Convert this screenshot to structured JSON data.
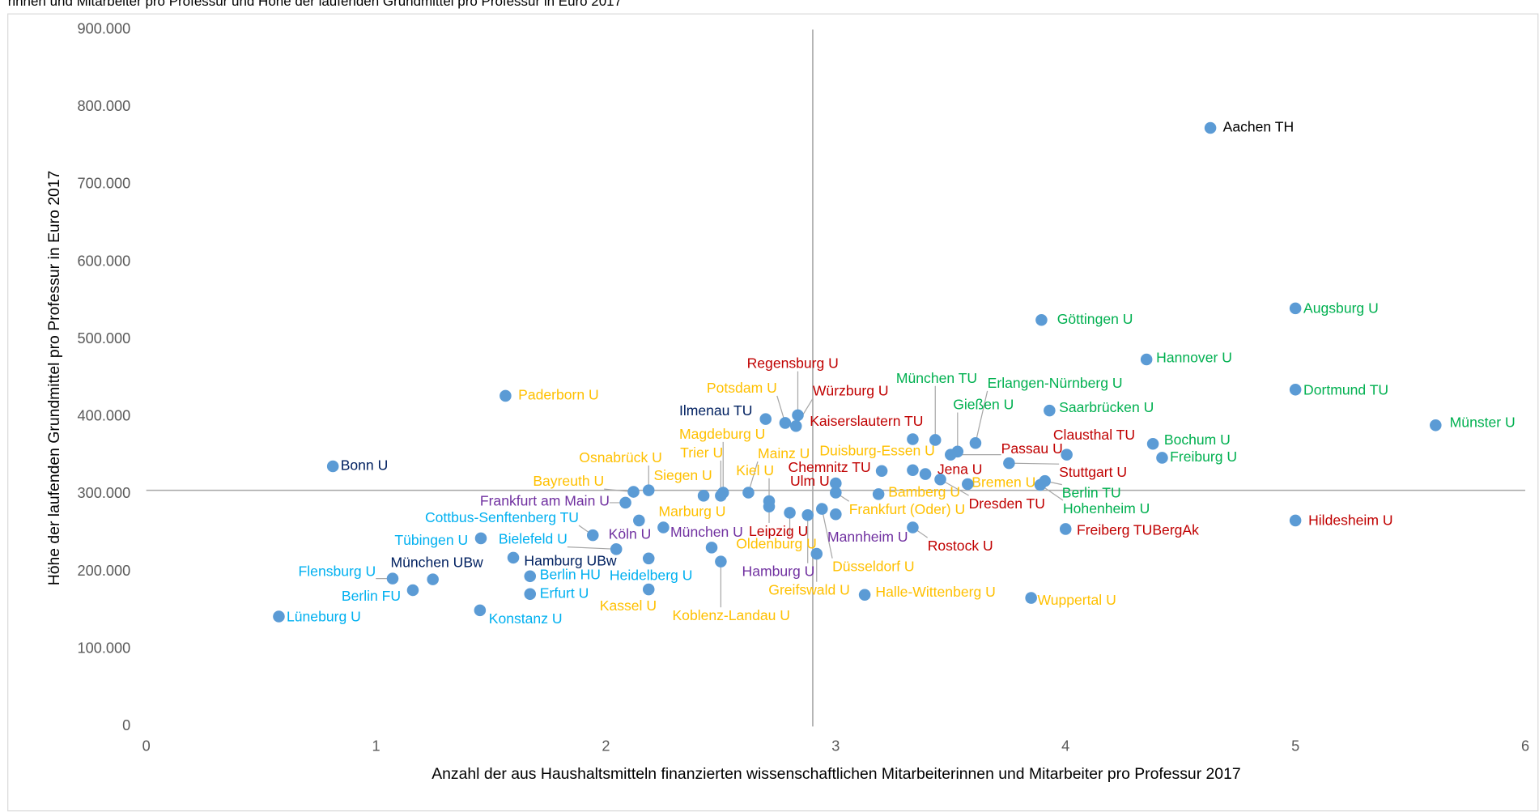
{
  "chart_data": {
    "type": "scatter",
    "title": "rinnen und Mitarbeiter pro Professur und Höhe der laufenden Grundmittel pro Professur in Euro 2017",
    "xlabel": "Anzahl der aus Haushaltsmitteln finanzierten wissenschaftlichen Mitarbeiterinnen und Mitarbeiter pro Professur 2017",
    "ylabel": "Höhe der laufenden Grundmittel pro Professur in Euro 2017",
    "xlim": [
      0,
      6
    ],
    "xticks": [
      0,
      1,
      2,
      3,
      4,
      5,
      6
    ],
    "ylim": [
      0,
      900000
    ],
    "yticks": [
      0,
      {
        "value": 100000,
        "label": "100.000"
      },
      {
        "value": 200000,
        "label": "200.000"
      },
      {
        "value": 300000,
        "label": "300.000"
      },
      {
        "value": 400000,
        "label": "400.000"
      },
      {
        "value": 500000,
        "label": "500.000"
      },
      {
        "value": 600000,
        "label": "600.000"
      },
      {
        "value": 700000,
        "label": "700.000"
      },
      {
        "value": 800000,
        "label": "800.000"
      },
      {
        "value": 900000,
        "label": "900.000"
      }
    ],
    "grid": false,
    "marker_color": "#5b9bd5",
    "reference_lines": {
      "x": 2.9,
      "y": 305000,
      "color": "#a6a6a6"
    },
    "points": [
      {
        "label": "Aachen TH",
        "x": 4.63,
        "y": 773000,
        "color": "#000000"
      },
      {
        "label": "Augsburg U",
        "x": 5.0,
        "y": 540000,
        "color": "#00b050"
      },
      {
        "label": "Göttingen U",
        "x": 3.895,
        "y": 525000,
        "color": "#00b050"
      },
      {
        "label": "Hannover U",
        "x": 4.352,
        "y": 474000,
        "color": "#00b050"
      },
      {
        "label": "Dortmund TU",
        "x": 5.0,
        "y": 435000,
        "color": "#00b050"
      },
      {
        "label": "Münster U",
        "x": 5.61,
        "y": 389000,
        "color": "#00b050"
      },
      {
        "label": "Hildesheim U",
        "x": 5.0,
        "y": 266000,
        "color": "#c00000"
      },
      {
        "label": "Bochum U",
        "x": 4.38,
        "y": 365000,
        "color": "#00b050"
      },
      {
        "label": "Freiburg U",
        "x": 4.42,
        "y": 347000,
        "color": "#00b050"
      },
      {
        "label": "Saarbrücken U",
        "x": 3.93,
        "y": 408000,
        "color": "#00b050"
      },
      {
        "label": "Clausthal TU",
        "x": 4.005,
        "y": 351000,
        "color": "#c00000"
      },
      {
        "label": "Stuttgart U",
        "x": 3.754,
        "y": 340000,
        "color": "#c00000"
      },
      {
        "label": "Freiberg TUBergAk",
        "x": 4.0,
        "y": 255000,
        "color": "#c00000"
      },
      {
        "label": "Wuppertal U",
        "x": 3.85,
        "y": 166000,
        "color": "#ffc000"
      },
      {
        "label": "Berlin TU",
        "x": 3.91,
        "y": 317000,
        "color": "#00b050"
      },
      {
        "label": "Hohenheim U",
        "x": 3.89,
        "y": 312000,
        "color": "#00b050"
      },
      {
        "label": "Bremen U",
        "x": 3.574,
        "y": 313000,
        "color": "#ffc000"
      },
      {
        "label": "München TU",
        "x": 3.433,
        "y": 370000,
        "color": "#00b050"
      },
      {
        "label": "Erlangen-Nürnberg U",
        "x": 3.608,
        "y": 366000,
        "color": "#00b050"
      },
      {
        "label": "Gießen U",
        "x": 3.53,
        "y": 355000,
        "color": "#00b050"
      },
      {
        "label": "Passau U",
        "x": 3.5,
        "y": 351000,
        "color": "#c00000"
      },
      {
        "label": "Jena U",
        "x": 3.39,
        "y": 326000,
        "color": "#c00000"
      },
      {
        "label": "Kaiserslautern TU",
        "x": 3.335,
        "y": 371000,
        "color": "#c00000"
      },
      {
        "label": "Duisburg-Essen U",
        "x": 3.335,
        "y": 331000,
        "color": "#ffc000"
      },
      {
        "label": "Dresden TU",
        "x": 3.455,
        "y": 319000,
        "color": "#c00000"
      },
      {
        "label": "Chemnitz TU",
        "x": 3.2,
        "y": 330000,
        "color": "#c00000"
      },
      {
        "label": "Ulm U",
        "x": 3.0,
        "y": 314000,
        "color": "#c00000"
      },
      {
        "label": "Bamberg U",
        "x": 3.186,
        "y": 300000,
        "color": "#ffc000"
      },
      {
        "label": "Frankfurt (Oder) U",
        "x": 3.0,
        "y": 302000,
        "color": "#ffc000"
      },
      {
        "label": "Rostock U",
        "x": 3.335,
        "y": 257000,
        "color": "#c00000"
      },
      {
        "label": "Mannheim U",
        "x": 3.0,
        "y": 274000,
        "color": "#7030a0"
      },
      {
        "label": "Düsseldorf U",
        "x": 2.94,
        "y": 281000,
        "color": "#ffc000"
      },
      {
        "label": "Halle-Wittenberg U",
        "x": 3.126,
        "y": 170000,
        "color": "#ffc000"
      },
      {
        "label": "Greifswald U",
        "x": 2.917,
        "y": 223000,
        "color": "#ffc000"
      },
      {
        "label": "Hamburg U",
        "x": 2.878,
        "y": 273000,
        "color": "#7030a0"
      },
      {
        "label": "Oldenburg U",
        "x": 2.8,
        "y": 276000,
        "color": "#ffc000"
      },
      {
        "label": "Leipzig U",
        "x": 2.71,
        "y": 284000,
        "color": "#c00000"
      },
      {
        "label": "Kiel U",
        "x": 2.71,
        "y": 291000,
        "color": "#ffc000"
      },
      {
        "label": "Mainz U",
        "x": 2.62,
        "y": 302000,
        "color": "#ffc000"
      },
      {
        "label": "München U",
        "x": 2.46,
        "y": 231000,
        "color": "#7030a0"
      },
      {
        "label": "Koblenz-Landau U",
        "x": 2.5,
        "y": 213000,
        "color": "#ffc000"
      },
      {
        "label": "Kassel U",
        "x": 2.186,
        "y": 177000,
        "color": "#ffc000"
      },
      {
        "label": "Heidelberg U",
        "x": 2.186,
        "y": 217000,
        "color": "#00b0f0"
      },
      {
        "label": "Marburg U",
        "x": 2.25,
        "y": 257000,
        "color": "#ffc000"
      },
      {
        "label": "Köln U",
        "x": 2.144,
        "y": 266000,
        "color": "#7030a0"
      },
      {
        "label": "Trier U",
        "x": 2.5,
        "y": 298000,
        "color": "#ffc000"
      },
      {
        "label": "Magdeburg U",
        "x": 2.51,
        "y": 302000,
        "color": "#ffc000"
      },
      {
        "label": "Siegen U",
        "x": 2.425,
        "y": 298000,
        "color": "#ffc000"
      },
      {
        "label": "Osnabrück U",
        "x": 2.186,
        "y": 305000,
        "color": "#ffc000"
      },
      {
        "label": "Bayreuth U",
        "x": 2.12,
        "y": 303000,
        "color": "#ffc000"
      },
      {
        "label": "Frankfurt am Main U",
        "x": 2.085,
        "y": 289000,
        "color": "#7030a0"
      },
      {
        "label": "Potsdam U",
        "x": 2.78,
        "y": 392000,
        "color": "#ffc000"
      },
      {
        "label": "Regensburg U",
        "x": 2.835,
        "y": 402000,
        "color": "#c00000"
      },
      {
        "label": "Würzburg U",
        "x": 2.827,
        "y": 388000,
        "color": "#c00000"
      },
      {
        "label": "Ilmenau TU",
        "x": 2.695,
        "y": 397000,
        "color": "#002060"
      },
      {
        "label": "Paderborn U",
        "x": 1.563,
        "y": 427000,
        "color": "#ffc000"
      },
      {
        "label": "Bonn U",
        "x": 0.812,
        "y": 336000,
        "color": "#002060"
      },
      {
        "label": "Cottbus-Senftenberg TU",
        "x": 1.943,
        "y": 247000,
        "color": "#00b0f0"
      },
      {
        "label": "Tübingen U",
        "x": 1.456,
        "y": 243000,
        "color": "#00b0f0"
      },
      {
        "label": "Bielefeld U",
        "x": 2.045,
        "y": 229000,
        "color": "#00b0f0"
      },
      {
        "label": "Hamburg UBw",
        "x": 1.597,
        "y": 218000,
        "color": "#002060"
      },
      {
        "label": "München UBw",
        "x": 1.247,
        "y": 190000,
        "color": "#002060"
      },
      {
        "label": "Flensburg U",
        "x": 1.072,
        "y": 191000,
        "color": "#00b0f0"
      },
      {
        "label": "Berlin FU",
        "x": 1.16,
        "y": 176000,
        "color": "#00b0f0"
      },
      {
        "label": "Berlin HU",
        "x": 1.67,
        "y": 194000,
        "color": "#00b0f0"
      },
      {
        "label": "Erfurt U",
        "x": 1.67,
        "y": 171000,
        "color": "#00b0f0"
      },
      {
        "label": "Lüneburg U",
        "x": 0.577,
        "y": 142000,
        "color": "#00b0f0"
      },
      {
        "label": "Konstanz U",
        "x": 1.452,
        "y": 150000,
        "color": "#00b0f0"
      }
    ]
  }
}
